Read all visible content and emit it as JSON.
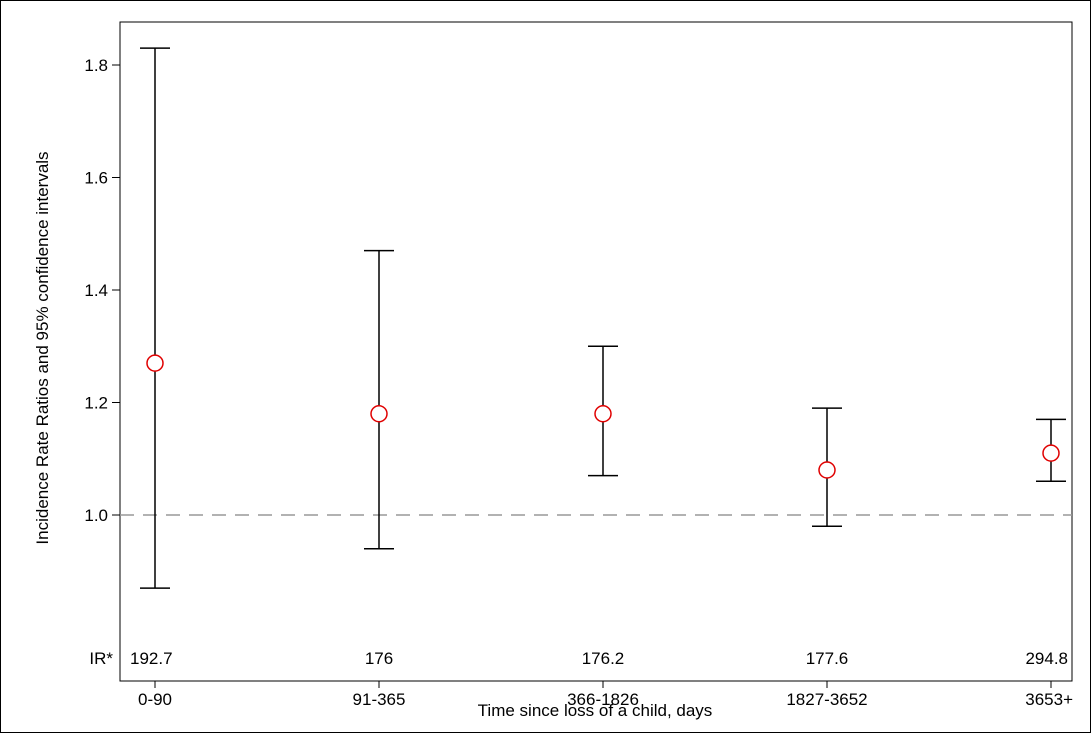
{
  "chart_data": {
    "type": "scatter",
    "categories": [
      "0-90",
      "91-365",
      "366-1826",
      "1827-3652",
      "3653+"
    ],
    "series": [
      {
        "estimates": [
          1.27,
          1.18,
          1.18,
          1.08,
          1.11
        ],
        "ci_lower": [
          0.87,
          0.94,
          1.07,
          0.98,
          1.06
        ],
        "ci_upper": [
          1.83,
          1.47,
          1.3,
          1.19,
          1.17
        ],
        "marker": "open-circle",
        "color": "#e00000"
      }
    ],
    "ir_label": "IR*",
    "ir_values": [
      "192.7",
      "176",
      "176.2",
      "177.6",
      "294.8"
    ],
    "xlabel": "Time since loss of a child, days",
    "ylabel": "Incidence Rate Ratios and 95% confidence intervals",
    "yticks": [
      "1.0",
      "1.2",
      "1.4",
      "1.6",
      "1.8"
    ],
    "ylim": [
      0.85,
      1.86
    ],
    "reference_line": 1.0,
    "reference_line_color": "#999999",
    "errorbar_color": "#000000",
    "grid": false
  }
}
